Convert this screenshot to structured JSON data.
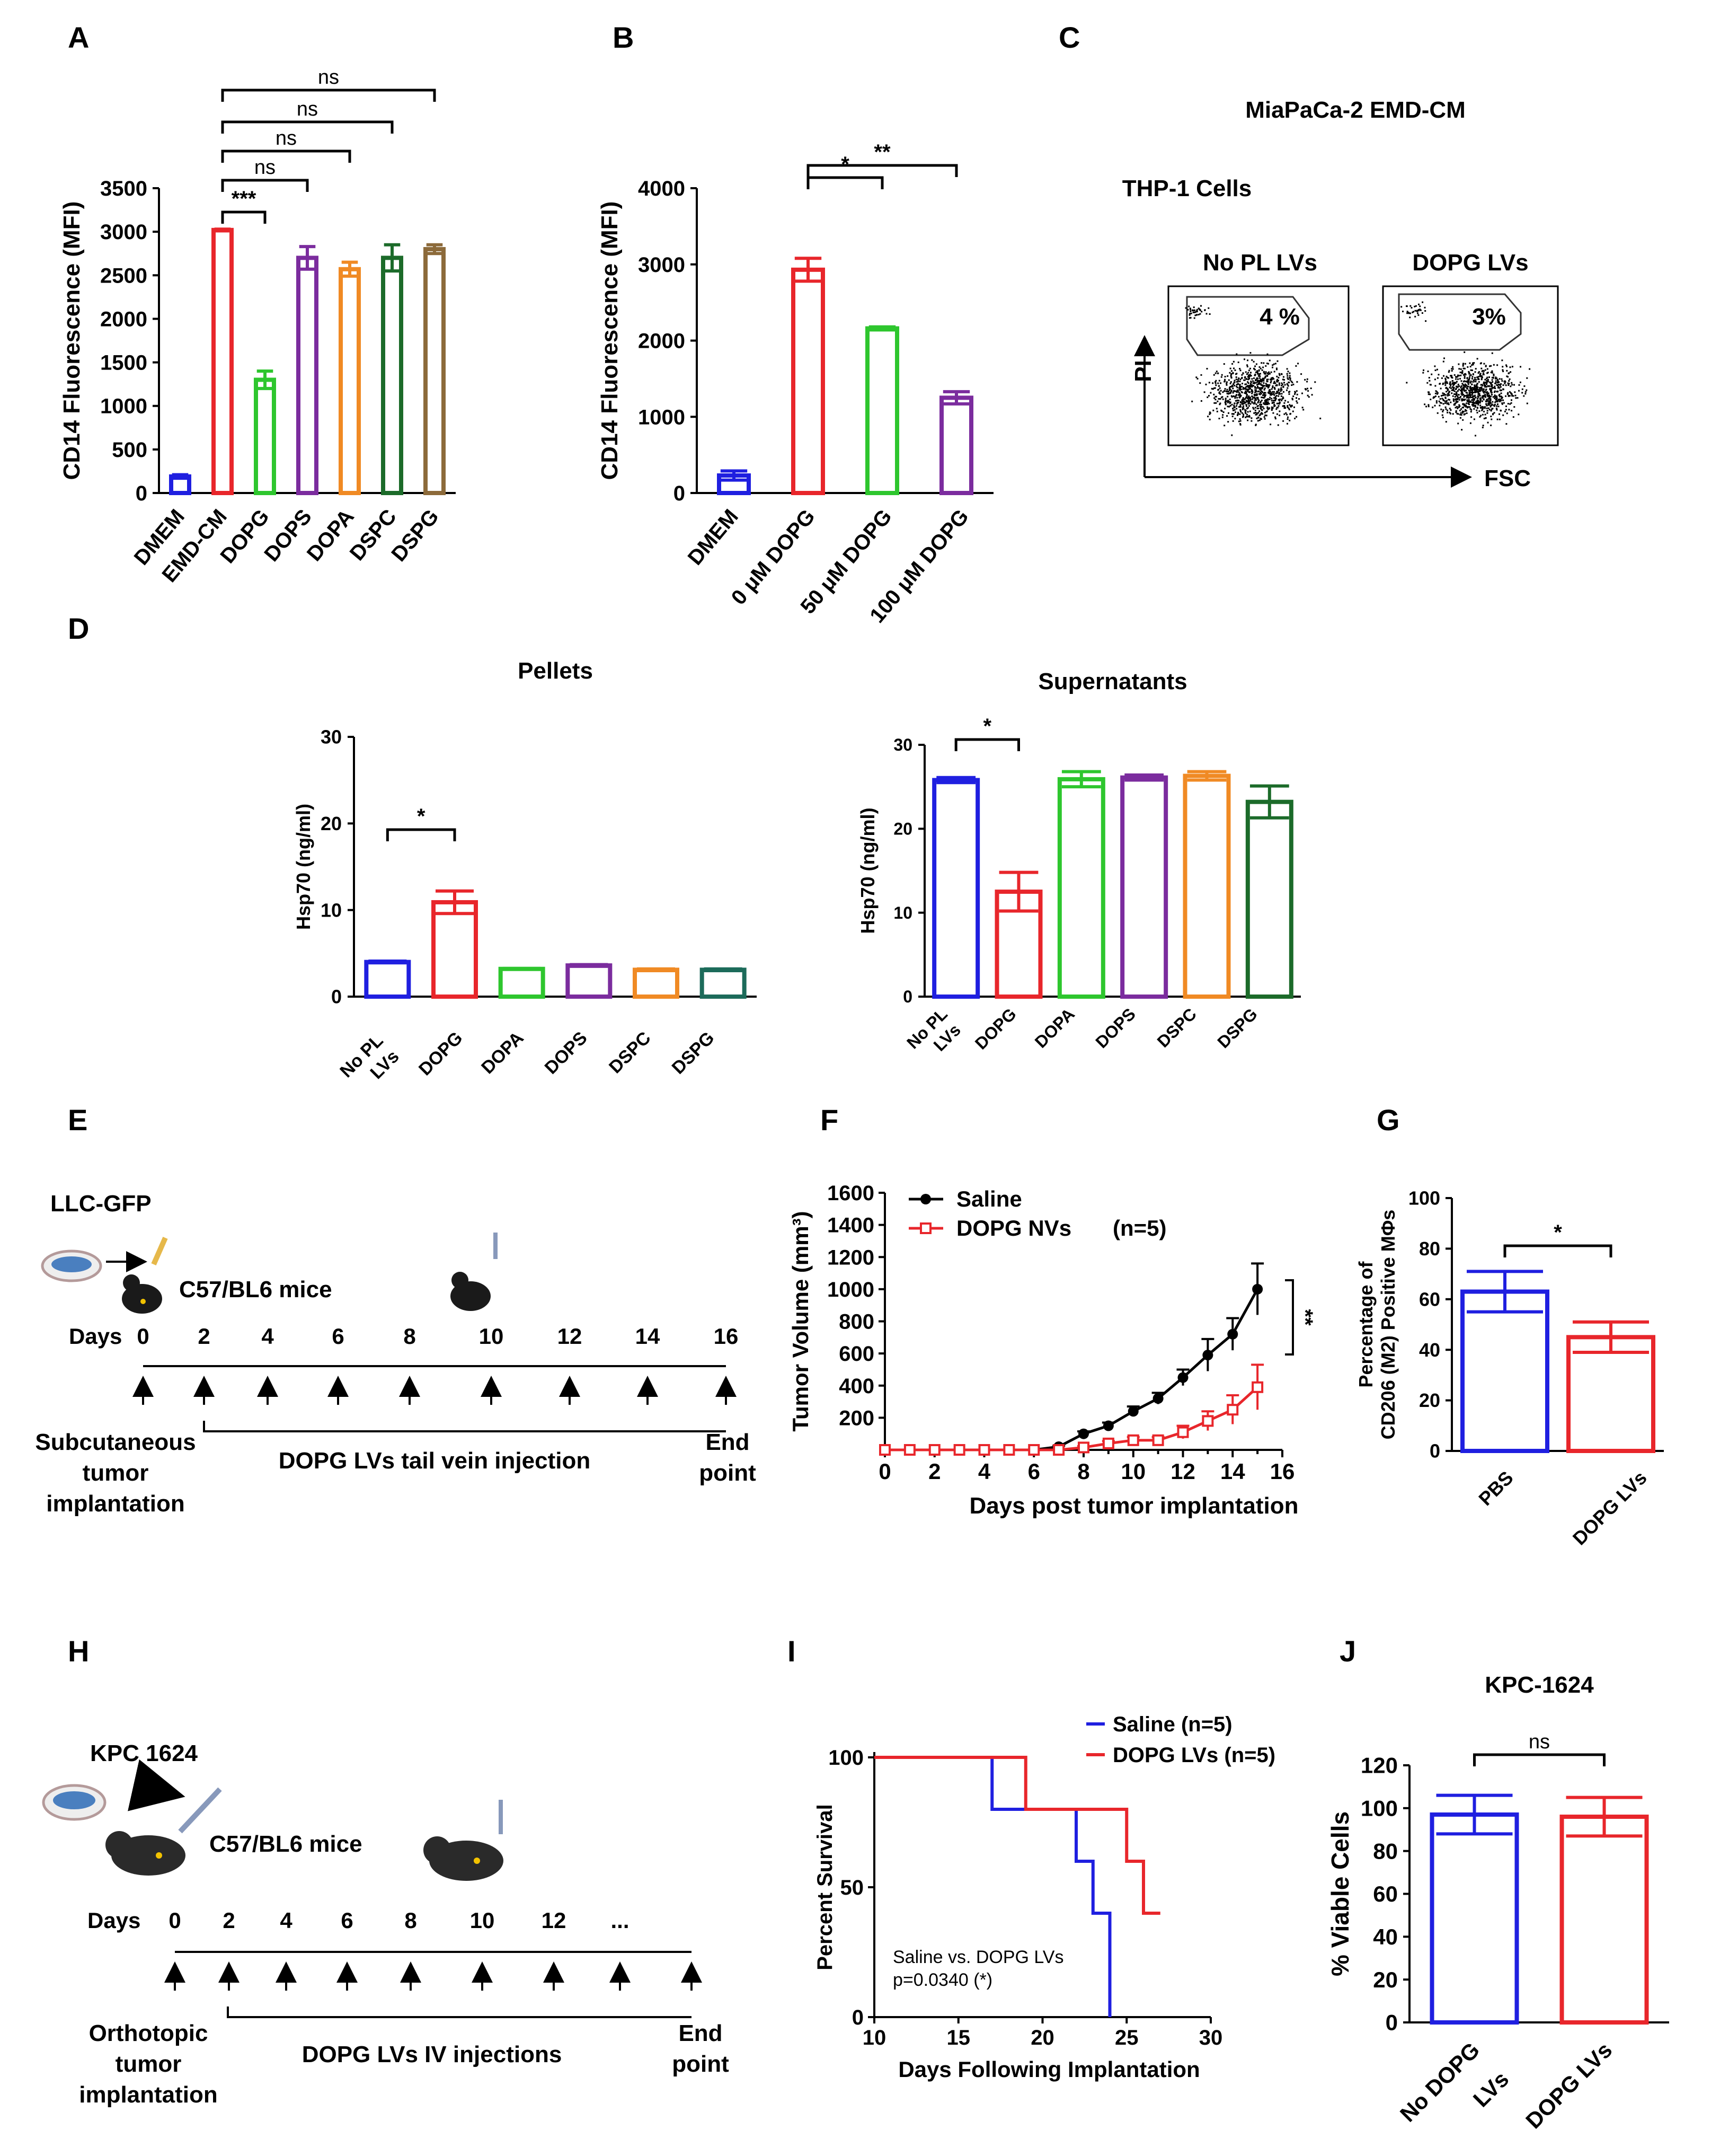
{
  "panels": {
    "A": {
      "label": "A"
    },
    "B": {
      "label": "B"
    },
    "C": {
      "label": "C"
    },
    "D": {
      "label": "D"
    },
    "E": {
      "label": "E"
    },
    "F": {
      "label": "F"
    },
    "G": {
      "label": "G"
    },
    "H": {
      "label": "H"
    },
    "I": {
      "label": "I"
    },
    "J": {
      "label": "J"
    }
  },
  "chart_data": [
    {
      "id": "A",
      "type": "bar",
      "ylabel": "CD14 Fluorescence (MFI)",
      "ylim": [
        0,
        3500
      ],
      "yticks": [
        0,
        500,
        1000,
        1500,
        2000,
        2500,
        3000,
        3500
      ],
      "categories": [
        "DMEM",
        "EMD-CM",
        "DOPG",
        "DOPS",
        "DOPA",
        "DSPC",
        "DSPG"
      ],
      "values": [
        190,
        3020,
        1300,
        2700,
        2570,
        2700,
        2800
      ],
      "errors": [
        20,
        10,
        100,
        130,
        80,
        150,
        50
      ],
      "colors": [
        "#1f1fe0",
        "#e8262b",
        "#2ec62e",
        "#7b2c9e",
        "#f08a24",
        "#1c6b2a",
        "#8c6a3a"
      ],
      "significance": [
        {
          "from": 1,
          "to": 2,
          "text": "***"
        },
        {
          "from": 1,
          "to": 3,
          "text": "ns"
        },
        {
          "from": 1,
          "to": 4,
          "text": "ns"
        },
        {
          "from": 1,
          "to": 5,
          "text": "ns"
        },
        {
          "from": 1,
          "to": 6,
          "text": "ns"
        }
      ]
    },
    {
      "id": "B",
      "type": "bar",
      "ylabel": "CD14 Fluorescence (MFI)",
      "ylim": [
        0,
        4000
      ],
      "yticks": [
        0,
        1000,
        2000,
        3000,
        4000
      ],
      "categories": [
        "DMEM",
        "0 μM DOPG",
        "50 μM DOPG",
        "100 μM DOPG"
      ],
      "values": [
        230,
        2930,
        2160,
        1250
      ],
      "errors": [
        60,
        150,
        20,
        80
      ],
      "colors": [
        "#1f1fe0",
        "#e8262b",
        "#2ec62e",
        "#7b2c9e"
      ],
      "significance": [
        {
          "from": 1,
          "to": 2,
          "text": "*"
        },
        {
          "from": 1,
          "to": 3,
          "text": "**"
        }
      ]
    },
    {
      "id": "D1",
      "type": "bar",
      "title": "Pellets",
      "ylabel": "Hsp70 (ng/ml)",
      "ylim": [
        0,
        30
      ],
      "yticks": [
        0,
        10,
        20,
        30
      ],
      "categories": [
        "No PL LVs",
        "DOPG",
        "DOPA",
        "DOPS",
        "DSPC",
        "DSPG"
      ],
      "values": [
        4.0,
        10.9,
        3.2,
        3.6,
        3.1,
        3.1
      ],
      "errors": [
        0.1,
        1.3,
        0.05,
        0.1,
        0.1,
        0.1
      ],
      "colors": [
        "#1f1fe0",
        "#e8262b",
        "#2ec62e",
        "#7b2c9e",
        "#f08a24",
        "#1c6b5a"
      ],
      "significance": [
        {
          "from": 0,
          "to": 1,
          "text": "*"
        }
      ]
    },
    {
      "id": "D2",
      "type": "bar",
      "title": "Supernatants",
      "ylabel": "Hsp70 (ng/ml)",
      "ylim": [
        0,
        30
      ],
      "yticks": [
        0,
        10,
        20,
        30
      ],
      "categories": [
        "No PL LVs",
        "DOPG",
        "DOPA",
        "DOPS",
        "DSPC",
        "DSPG"
      ],
      "values": [
        25.8,
        12.5,
        25.9,
        26.1,
        26.3,
        23.2
      ],
      "errors": [
        0.3,
        2.3,
        0.9,
        0.3,
        0.5,
        1.9
      ],
      "colors": [
        "#1f1fe0",
        "#e8262b",
        "#2ec62e",
        "#7b2c9e",
        "#f08a24",
        "#1c6b2a"
      ],
      "significance": [
        {
          "from": 0,
          "to": 1,
          "text": "*"
        }
      ]
    },
    {
      "id": "F",
      "type": "line",
      "xlabel": "Days post tumor implantation",
      "ylabel": "Tumor Volume (mm³)",
      "xlim": [
        0,
        16
      ],
      "ylim": [
        0,
        1600
      ],
      "xticks": [
        0,
        2,
        4,
        6,
        8,
        10,
        12,
        14,
        16
      ],
      "yticks": [
        200,
        400,
        600,
        800,
        1000,
        1200,
        1400,
        1600
      ],
      "x": [
        0,
        1,
        2,
        3,
        4,
        5,
        6,
        7,
        8,
        9,
        10,
        11,
        12,
        13,
        14,
        15
      ],
      "series": [
        {
          "name": "Saline",
          "color": "#000000",
          "marker": "circle",
          "values": [
            0,
            0,
            0,
            0,
            0,
            0,
            0,
            20,
            100,
            150,
            240,
            320,
            450,
            590,
            720,
            1000
          ],
          "errors": [
            0,
            0,
            0,
            0,
            0,
            0,
            0,
            5,
            15,
            20,
            30,
            35,
            50,
            100,
            100,
            160
          ]
        },
        {
          "name": "DOPG NVs",
          "color": "#e8262b",
          "marker": "square-open",
          "values": [
            0,
            0,
            0,
            0,
            0,
            0,
            0,
            0,
            15,
            40,
            60,
            60,
            110,
            180,
            250,
            390
          ],
          "errors": [
            0,
            0,
            0,
            0,
            0,
            0,
            0,
            0,
            8,
            15,
            20,
            20,
            40,
            60,
            90,
            140
          ]
        }
      ],
      "annotations": {
        "n": "(n=5)",
        "significance": "**"
      }
    },
    {
      "id": "G",
      "type": "bar",
      "ylabel_line1": "Percentage of",
      "ylabel_line2": "CD206 (M2) Positive MΦs",
      "ylim": [
        0,
        100
      ],
      "yticks": [
        0,
        20,
        40,
        60,
        80,
        100
      ],
      "categories": [
        "PBS",
        "DOPG LVs"
      ],
      "values": [
        63,
        45
      ],
      "errors": [
        8,
        6
      ],
      "colors": [
        "#1f1fe0",
        "#e8262b"
      ],
      "significance": [
        {
          "from": 0,
          "to": 1,
          "text": "*"
        }
      ]
    },
    {
      "id": "I",
      "type": "line",
      "xlabel": "Days Following Implantation",
      "ylabel": "Percent Survival",
      "xlim": [
        10,
        30
      ],
      "ylim": [
        0,
        100
      ],
      "xticks": [
        10,
        15,
        20,
        25,
        30
      ],
      "yticks": [
        0,
        50,
        100
      ],
      "series": [
        {
          "name": "Saline (n=5)",
          "color": "#1f1fe0",
          "steps": [
            [
              10,
              100
            ],
            [
              17,
              100
            ],
            [
              17,
              80
            ],
            [
              22,
              80
            ],
            [
              22,
              60
            ],
            [
              23,
              60
            ],
            [
              23,
              40
            ],
            [
              24,
              40
            ],
            [
              24,
              0
            ]
          ]
        },
        {
          "name": "DOPG LVs (n=5)",
          "color": "#e8262b",
          "steps": [
            [
              10,
              100
            ],
            [
              19,
              100
            ],
            [
              19,
              80
            ],
            [
              25,
              80
            ],
            [
              25,
              60
            ],
            [
              26,
              60
            ],
            [
              26,
              40
            ],
            [
              27,
              40
            ]
          ]
        }
      ],
      "annotation_line1": "Saline vs. DOPG LVs",
      "annotation_line2": "p=0.0340 (*)"
    },
    {
      "id": "J",
      "type": "bar",
      "title": "KPC-1624",
      "ylabel": "% Viable Cells",
      "ylim": [
        0,
        120
      ],
      "yticks": [
        0,
        20,
        40,
        60,
        80,
        100,
        120
      ],
      "categories": [
        "No DOPG LVs",
        "DOPG LVs"
      ],
      "values": [
        97,
        96
      ],
      "errors": [
        9,
        9
      ],
      "colors": [
        "#1f1fe0",
        "#e8262b"
      ],
      "significance": [
        {
          "from": 0,
          "to": 1,
          "text": "ns"
        }
      ]
    }
  ],
  "flow": {
    "title": "MiaPaCa-2 EMD-CM",
    "subtitle": "THP-1 Cells",
    "plots": [
      {
        "label": "No PL LVs",
        "pct": "4 %"
      },
      {
        "label": "DOPG LVs",
        "pct": "3%"
      }
    ],
    "ylabel": "PI",
    "xlabel": "FSC",
    "pct_color": "#e0201e"
  },
  "schemeE": {
    "cell_line": "LLC-GFP",
    "mice": "C57/BL6 mice",
    "days_label": "Days",
    "days": [
      "0",
      "2",
      "4",
      "6",
      "8",
      "10",
      "12",
      "14",
      "16"
    ],
    "start_label": [
      "Subcutaneous",
      "tumor",
      "implantation"
    ],
    "treatment": "DOPG LVs tail vein  injection",
    "end_label": [
      "End",
      "point"
    ]
  },
  "schemeH": {
    "cell_line": "KPC 1624",
    "mice": "C57/BL6 mice",
    "days_label": "Days",
    "days": [
      "0",
      "2",
      "4",
      "6",
      "8",
      "10",
      "12",
      "..."
    ],
    "start_label": [
      "Orthotopic",
      "tumor",
      "implantation"
    ],
    "treatment": "DOPG LVs IV injections",
    "end_label": [
      "End",
      "point"
    ]
  },
  "labels_B": [
    "DMEM",
    "0 μM DOPG",
    "50 μM DOPG",
    "100 μM DOPG"
  ],
  "labels_D": [
    "No PL",
    "LVs",
    "DOPG",
    "DOPA",
    "DOPS",
    "DSPC",
    "DSPG"
  ],
  "labels_J": [
    "No DOPG",
    "LVs",
    "DOPG LVs"
  ]
}
